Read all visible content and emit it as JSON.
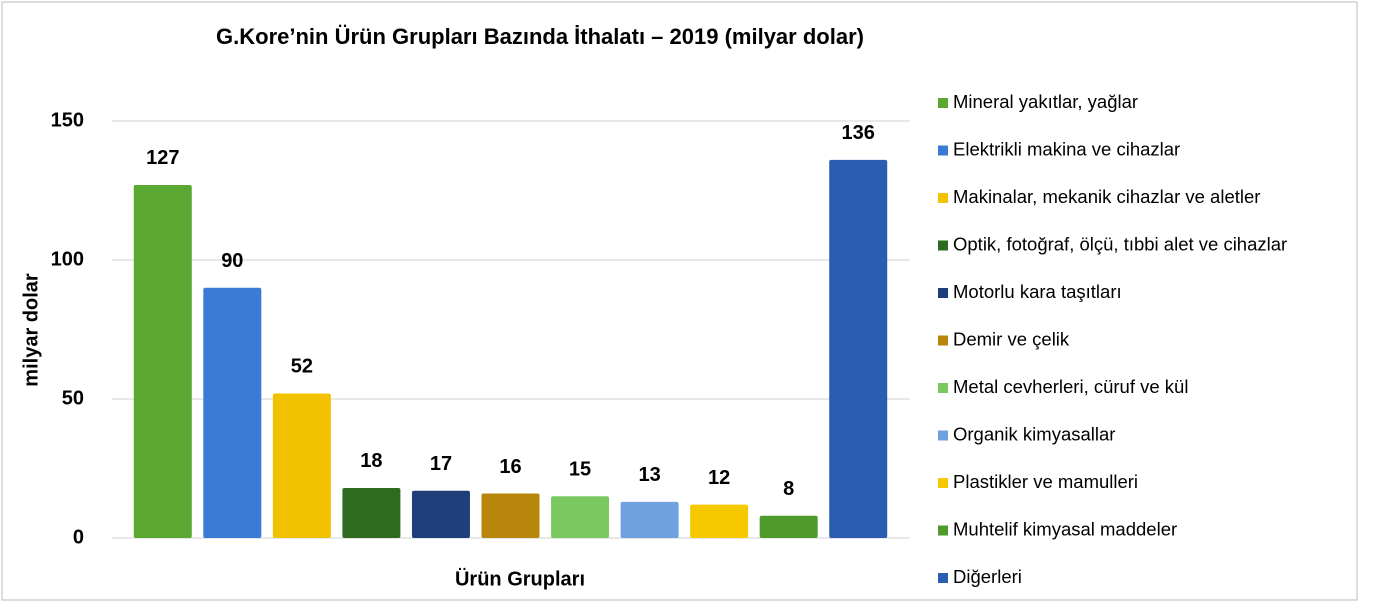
{
  "chart_data": {
    "type": "bar",
    "title": "G.Kore’nin Ürün Grupları Bazında İthalatı – 2019 (milyar dolar)",
    "x_label": "Ürün Grupları",
    "y_label": "milyar dolar",
    "categories": [
      "Mineral yakıtlar, yağlar",
      "Elektrikli makina ve cihazlar",
      "Makinalar, mekanik cihazlar ve aletler",
      "Optik, fotoğraf, ölçü, tıbbi alet ve cihazlar",
      "Motorlu kara taşıtları",
      "Demir ve çelik",
      "Metal cevherleri, cüruf ve kül",
      "Organik kimyasallar",
      "Plastikler ve mamulleri",
      "Muhtelif kimyasal maddeler",
      "Diğerleri"
    ],
    "values": [
      127,
      90,
      52,
      18,
      17,
      16,
      15,
      13,
      12,
      8,
      136
    ],
    "colors": [
      "#5aa832",
      "#3a7bd5",
      "#f2c200",
      "#2e6b1f",
      "#1f3f7a",
      "#b8860b",
      "#7cc860",
      "#6fa0e0",
      "#f5c800",
      "#4e9a2a",
      "#2a5cb0"
    ],
    "ylim": [
      0,
      150
    ],
    "yticks": [
      0,
      50,
      100,
      150
    ],
    "grid": true,
    "legend": "right"
  }
}
